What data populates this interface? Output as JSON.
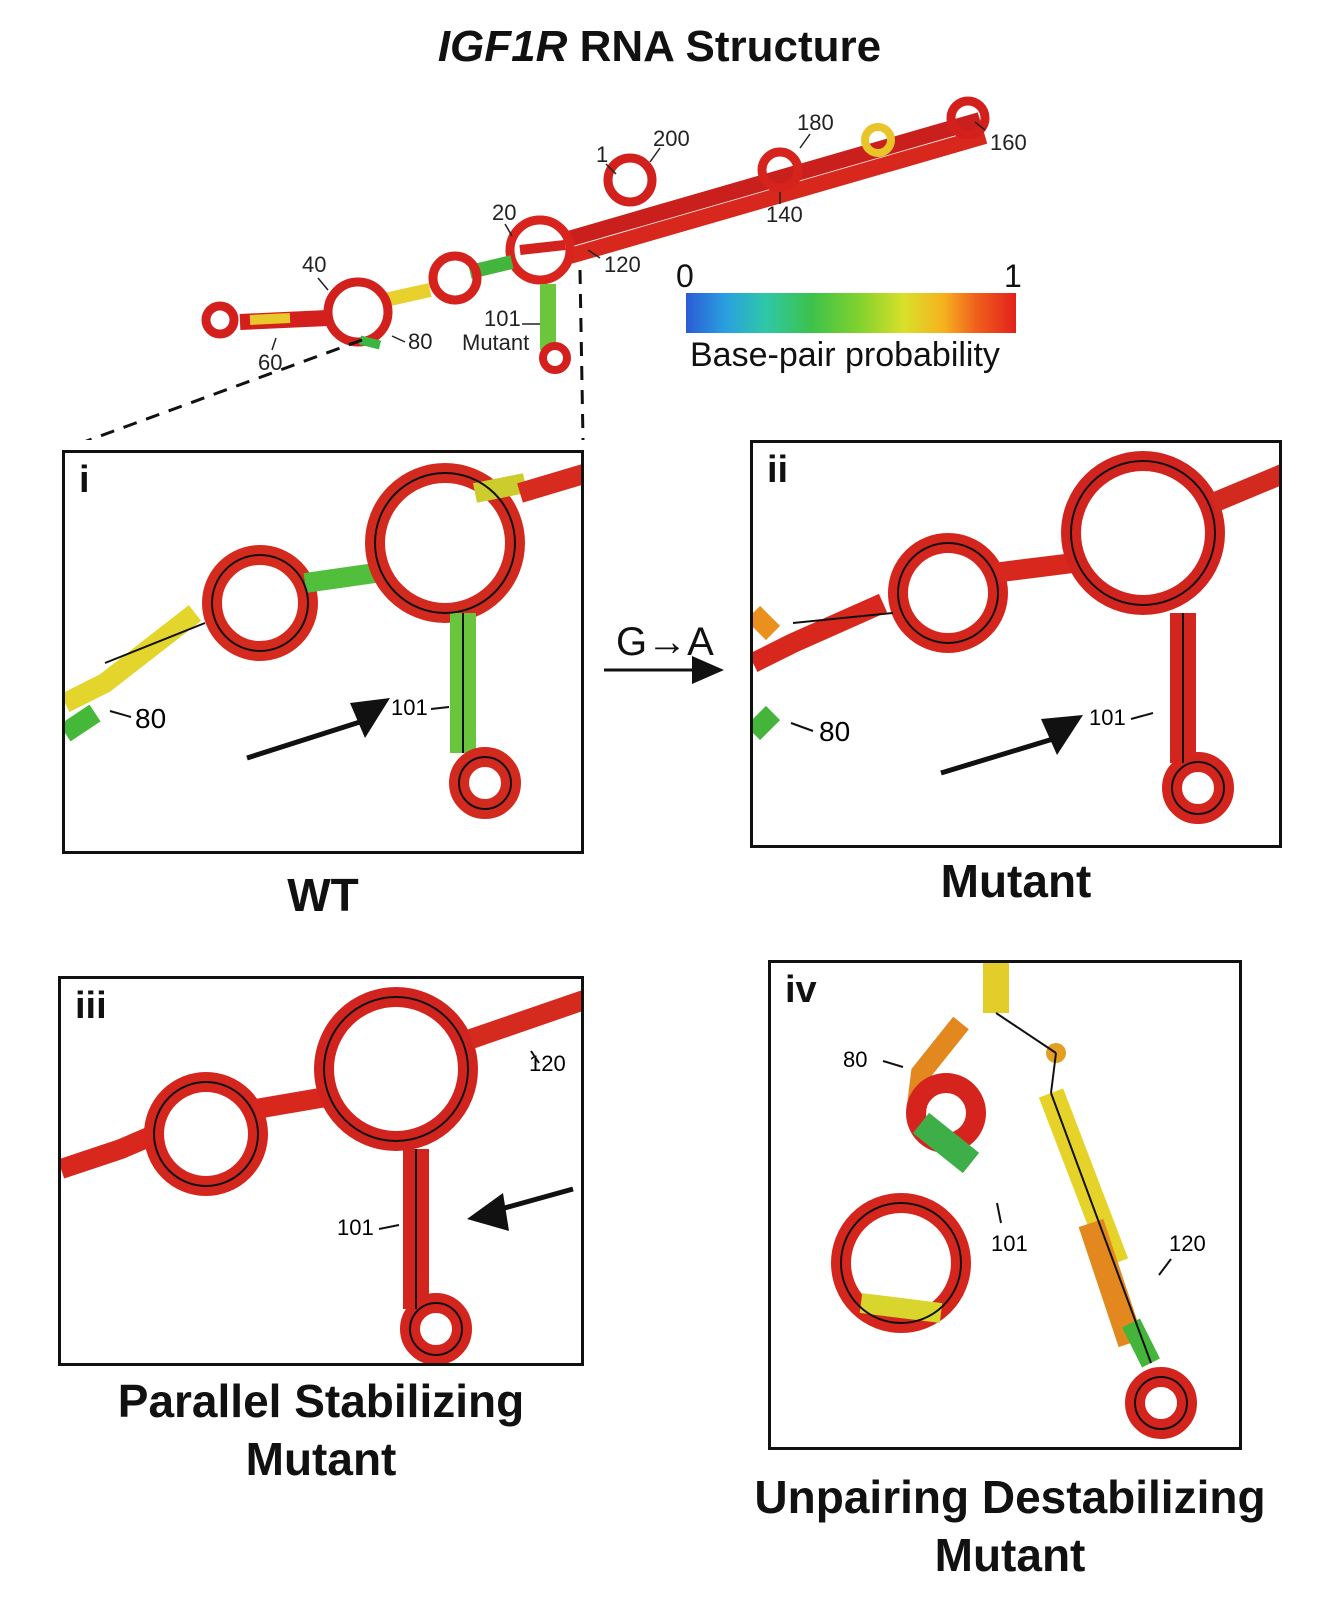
{
  "figure": {
    "title_italic": "IGF1R",
    "title_rest": " RNA Structure"
  },
  "overview": {
    "labels": [
      "1",
      "200",
      "180",
      "160",
      "140",
      "120",
      "20",
      "40",
      "60",
      "80",
      "101",
      "Mutant"
    ]
  },
  "colorbar": {
    "min": "0",
    "max": "1",
    "label": "Base-pair probability",
    "colors": [
      "#2b5bd6",
      "#2aa0e0",
      "#2fc7a8",
      "#3cc24a",
      "#7fd12e",
      "#d8e02a",
      "#f6b21f",
      "#f0601c",
      "#e3201c"
    ]
  },
  "mutation": {
    "label": "G→A"
  },
  "panels": [
    {
      "id": "i",
      "caption": "WT",
      "labels": [
        "80",
        "101"
      ]
    },
    {
      "id": "ii",
      "caption": "Mutant",
      "labels": [
        "80",
        "101"
      ]
    },
    {
      "id": "iii",
      "caption_line1": "Parallel Stabilizing",
      "caption_line2": "Mutant",
      "labels": [
        "120",
        "101"
      ]
    },
    {
      "id": "iv",
      "caption_line1": "Unpairing Destabilizing",
      "caption_line2": "Mutant",
      "labels": [
        "80",
        "101",
        "120"
      ]
    }
  ]
}
